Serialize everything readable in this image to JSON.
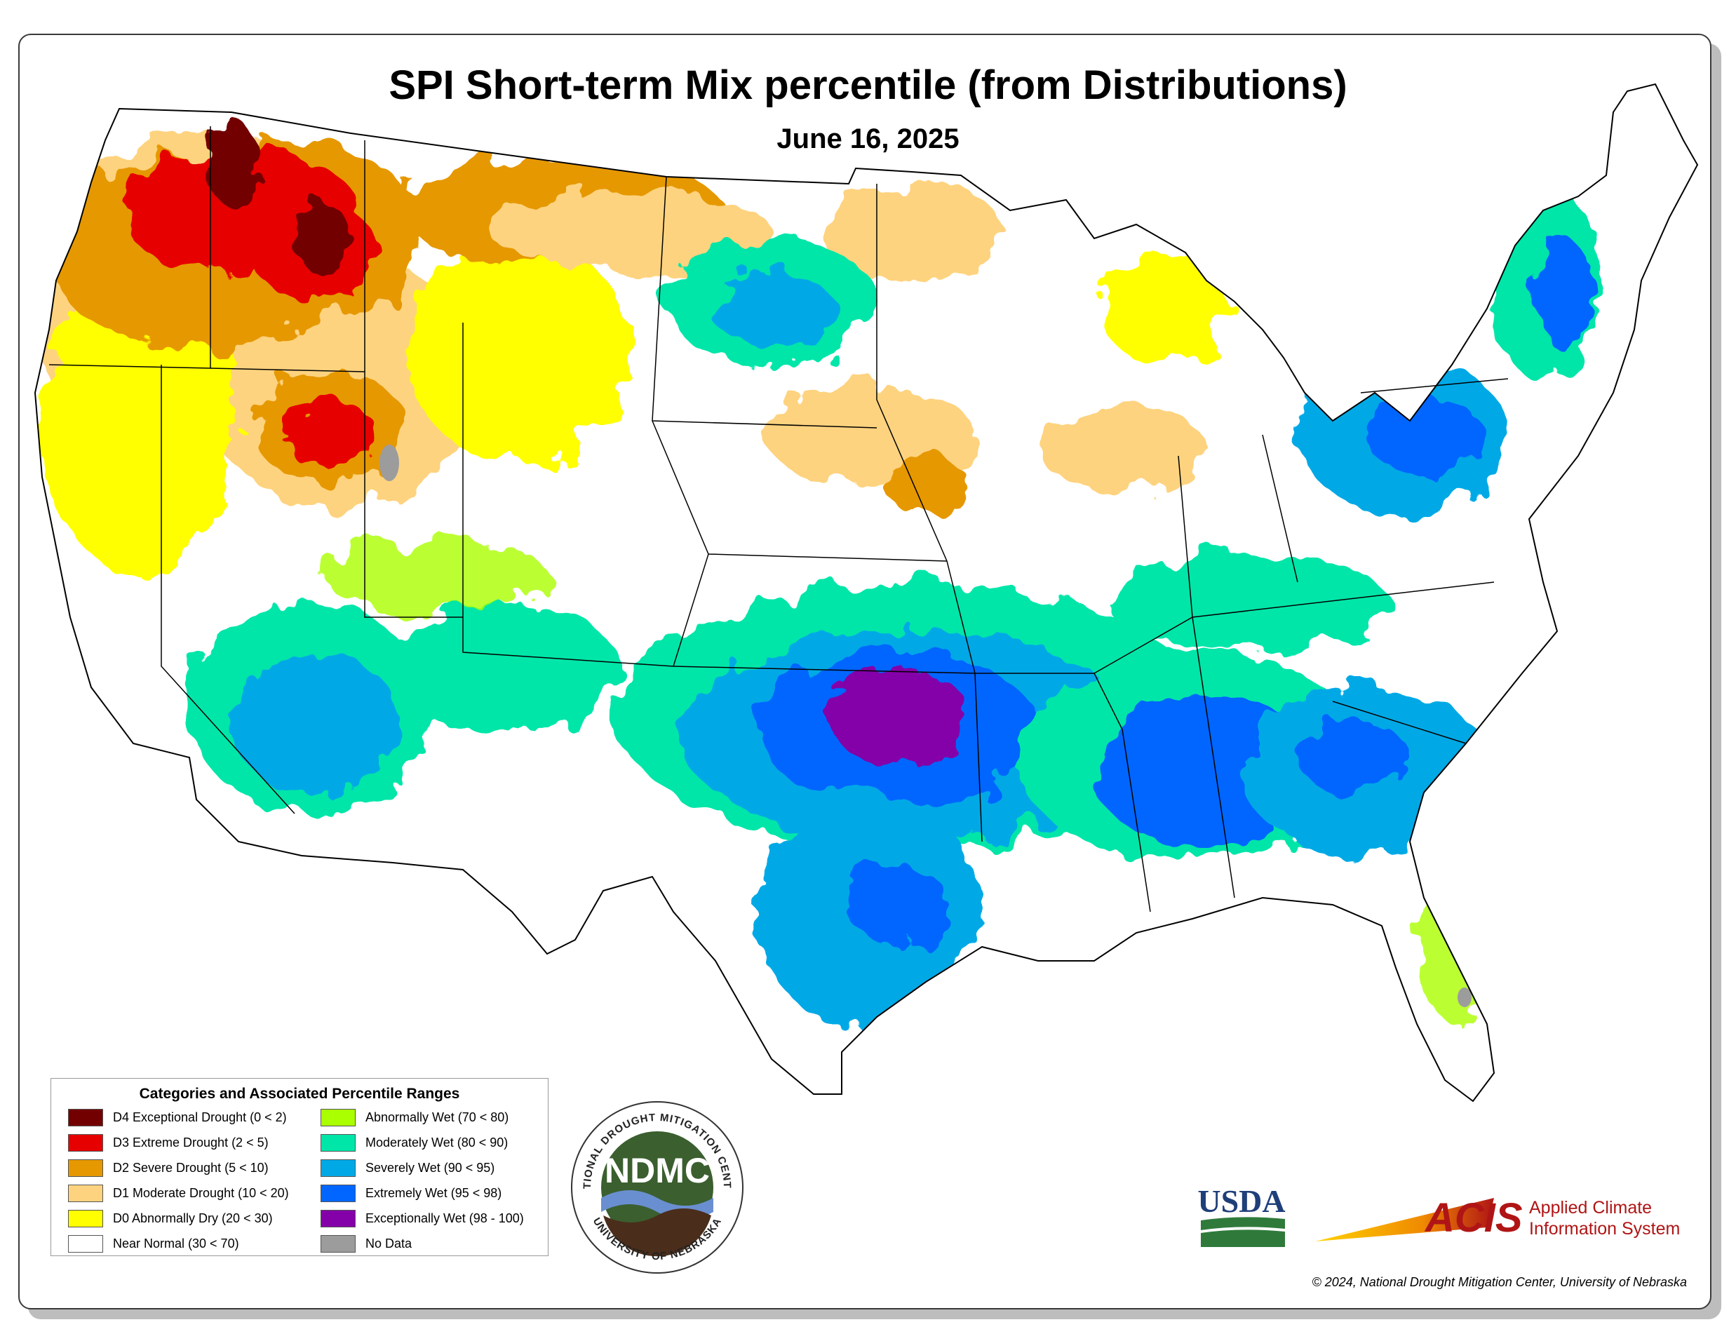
{
  "title": "SPI Short-term Mix percentile (from Distributions)",
  "subtitle": "June 16, 2025",
  "legend": {
    "title": "Categories and Associated Percentile Ranges",
    "items": [
      {
        "label": "D4 Exceptional Drought (0 < 2)",
        "color": "#730000"
      },
      {
        "label": "D3 Extreme Drought (2 < 5)",
        "color": "#e60000"
      },
      {
        "label": "D2 Severe Drought (5 < 10)",
        "color": "#e69800"
      },
      {
        "label": "D1 Moderate Drought (10 < 20)",
        "color": "#fed37f"
      },
      {
        "label": "D0 Abnormally Dry (20 < 30)",
        "color": "#ffff00"
      },
      {
        "label": "Near Normal (30 < 70)",
        "color": "#ffffff"
      },
      {
        "label": "Abnormally Wet (70 < 80)",
        "color": "#aaff00"
      },
      {
        "label": "Moderately Wet (80 < 90)",
        "color": "#00e6a9"
      },
      {
        "label": "Severely Wet (90 < 95)",
        "color": "#00a9e6"
      },
      {
        "label": "Extremely Wet (95 < 98)",
        "color": "#0066ff"
      },
      {
        "label": "Exceptionally Wet (98 - 100)",
        "color": "#8400a8"
      },
      {
        "label": "No Data",
        "color": "#9c9c9c"
      }
    ]
  },
  "logos": {
    "ndmc": {
      "ring_top": "NATIONAL DROUGHT MITIGATION CENTER",
      "center": "NDMC",
      "ring_bottom": "UNIVERSITY OF NEBRASKA"
    },
    "usda": {
      "text": "USDA"
    },
    "acis": {
      "abbr": "ACIS",
      "line1": "Applied Climate",
      "line2": "Information System"
    }
  },
  "copyright": "© 2024, National Drought Mitigation Center, University of Nebraska"
}
